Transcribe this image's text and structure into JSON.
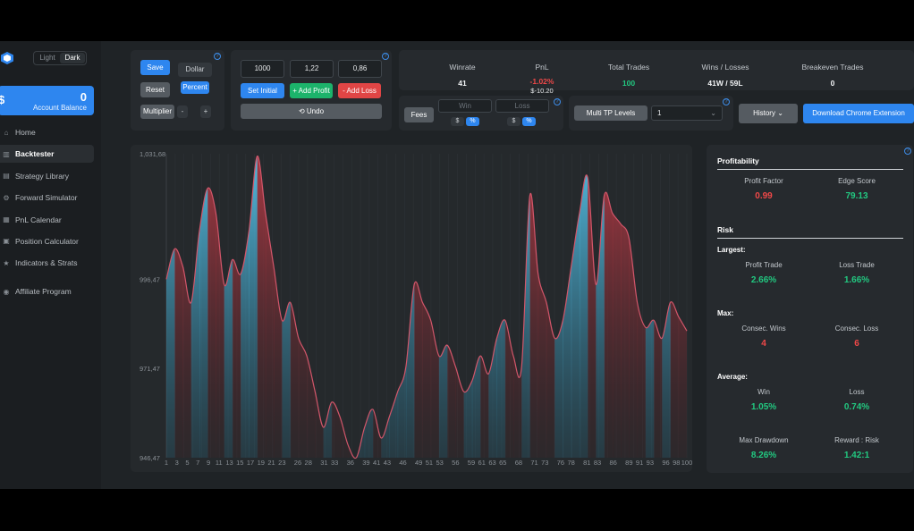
{
  "theme": {
    "light": "Light",
    "dark": "Dark",
    "active": "dark"
  },
  "account": {
    "currency_symbol": "$",
    "balance": "0",
    "label": "Account Balance"
  },
  "nav": [
    {
      "label": "Home",
      "icon": "home-icon",
      "active": false
    },
    {
      "label": "Backtester",
      "icon": "bar-chart-icon",
      "active": true
    },
    {
      "label": "Strategy Library",
      "icon": "library-icon",
      "active": false
    },
    {
      "label": "Forward Simulator",
      "icon": "simulator-icon",
      "active": false
    },
    {
      "label": "PnL Calendar",
      "icon": "calendar-icon",
      "active": false
    },
    {
      "label": "Position Calculator",
      "icon": "calculator-icon",
      "active": false
    },
    {
      "label": "Indicators & Strats",
      "icon": "star-icon",
      "active": false
    },
    {
      "label": "Affiliate Program",
      "icon": "user-icon",
      "active": false
    }
  ],
  "controls": {
    "save": "Save",
    "reset": "Reset",
    "dollar": "Dollar",
    "percent": "Percent",
    "multiplier": "Multiplier",
    "minus": "-",
    "plus": "+",
    "initial_value": "1000",
    "profit_value": "1,22",
    "loss_value": "0,86",
    "set_initial": "Set Initial",
    "add_profit": "+ Add Profit",
    "add_loss": "- Add Loss",
    "undo": "⟲ Undo"
  },
  "summary": {
    "winrate": {
      "label": "Winrate",
      "value": "41"
    },
    "pnl": {
      "label": "PnL",
      "percent": "-1.02%",
      "dollars": "$-10.20"
    },
    "total_trades": {
      "label": "Total Trades",
      "value": "100"
    },
    "wins_losses": {
      "label": "Wins / Losses",
      "value": "41W / 59L"
    },
    "breakeven": {
      "label": "Breakeven Trades",
      "value": "0"
    }
  },
  "fees": {
    "label": "Fees",
    "win_placeholder": "Win",
    "loss_placeholder": "Loss",
    "dollar": "$",
    "percent": "%"
  },
  "multi_tp": {
    "label": "Multi TP Levels",
    "selected": "1"
  },
  "history": "History",
  "download": "Download Chrome Extension",
  "profitability": {
    "title": "Profitability",
    "profit_factor": {
      "label": "Profit Factor",
      "value": "0.99"
    },
    "edge_score": {
      "label": "Edge Score",
      "value": "79.13"
    },
    "risk_title": "Risk",
    "largest_title": "Largest:",
    "profit_trade": {
      "label": "Profit Trade",
      "value": "2.66%"
    },
    "loss_trade": {
      "label": "Loss Trade",
      "value": "1.66%"
    },
    "max_title": "Max:",
    "consec_wins": {
      "label": "Consec. Wins",
      "value": "4"
    },
    "consec_loss": {
      "label": "Consec. Loss",
      "value": "6"
    },
    "average_title": "Average:",
    "avg_win": {
      "label": "Win",
      "value": "1.05%"
    },
    "avg_loss": {
      "label": "Loss",
      "value": "0.74%"
    },
    "max_drawdown": {
      "label": "Max Drawdown",
      "value": "8.26%"
    },
    "reward_risk": {
      "label": "Reward : Risk",
      "value": "1.42:1"
    }
  },
  "chart_data": {
    "type": "area",
    "y_ticks": [
      "1,031,68",
      "996,47",
      "971,47",
      "946,47"
    ],
    "ylim": [
      946.47,
      1031.68
    ],
    "x_ticks": [
      "1",
      "3",
      "5",
      "7",
      "9",
      "11",
      "13",
      "15",
      "17",
      "19",
      "21",
      "23",
      "26",
      "28",
      "31",
      "33",
      "36",
      "39",
      "41",
      "43",
      "46",
      "49",
      "51",
      "53",
      "56",
      "59",
      "61",
      "63",
      "65",
      "68",
      "71",
      "73",
      "76",
      "78",
      "81",
      "83",
      "86",
      "89",
      "91",
      "93",
      "96",
      "98",
      "100"
    ],
    "colors": {
      "profit": "#4fb7dd",
      "loss": "#c2424e"
    },
    "values": [
      996.5,
      1005,
      1000,
      990,
      1010,
      1022,
      1015,
      995,
      1002,
      998,
      1010,
      1031,
      1015,
      1000,
      985,
      990,
      980,
      975,
      965,
      955,
      962,
      958,
      950,
      946.5,
      955,
      960,
      952,
      958,
      965,
      972,
      995,
      990,
      985,
      975,
      978,
      972,
      965,
      968,
      975,
      970,
      980,
      985,
      975,
      972,
      1020,
      998,
      990,
      980,
      985,
      1000,
      1015,
      1025,
      995,
      1020,
      1015,
      1012,
      1008,
      990,
      983,
      985,
      980,
      990,
      986,
      982
    ]
  }
}
